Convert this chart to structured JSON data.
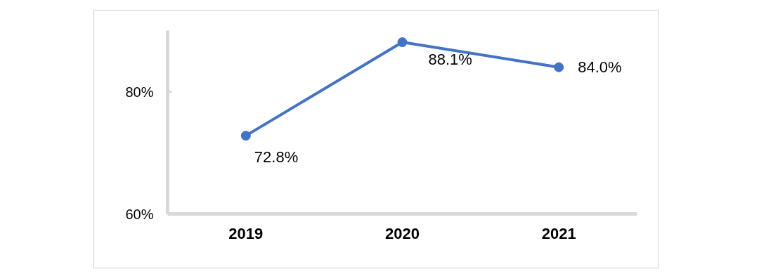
{
  "chart_data": {
    "type": "line",
    "categories": [
      "2019",
      "2020",
      "2021"
    ],
    "series": [
      {
        "color": "#4472c4",
        "values": [
          72.8,
          88.1,
          84.0
        ],
        "value_labels": [
          "72.8%",
          "88.1%",
          "84.0%"
        ]
      }
    ],
    "ylim": [
      60,
      90
    ],
    "yticks": [
      {
        "value": 60,
        "label": "60%"
      },
      {
        "value": 80,
        "label": "80%"
      }
    ],
    "grid": false,
    "marker": "circle",
    "line_style": "solid"
  }
}
